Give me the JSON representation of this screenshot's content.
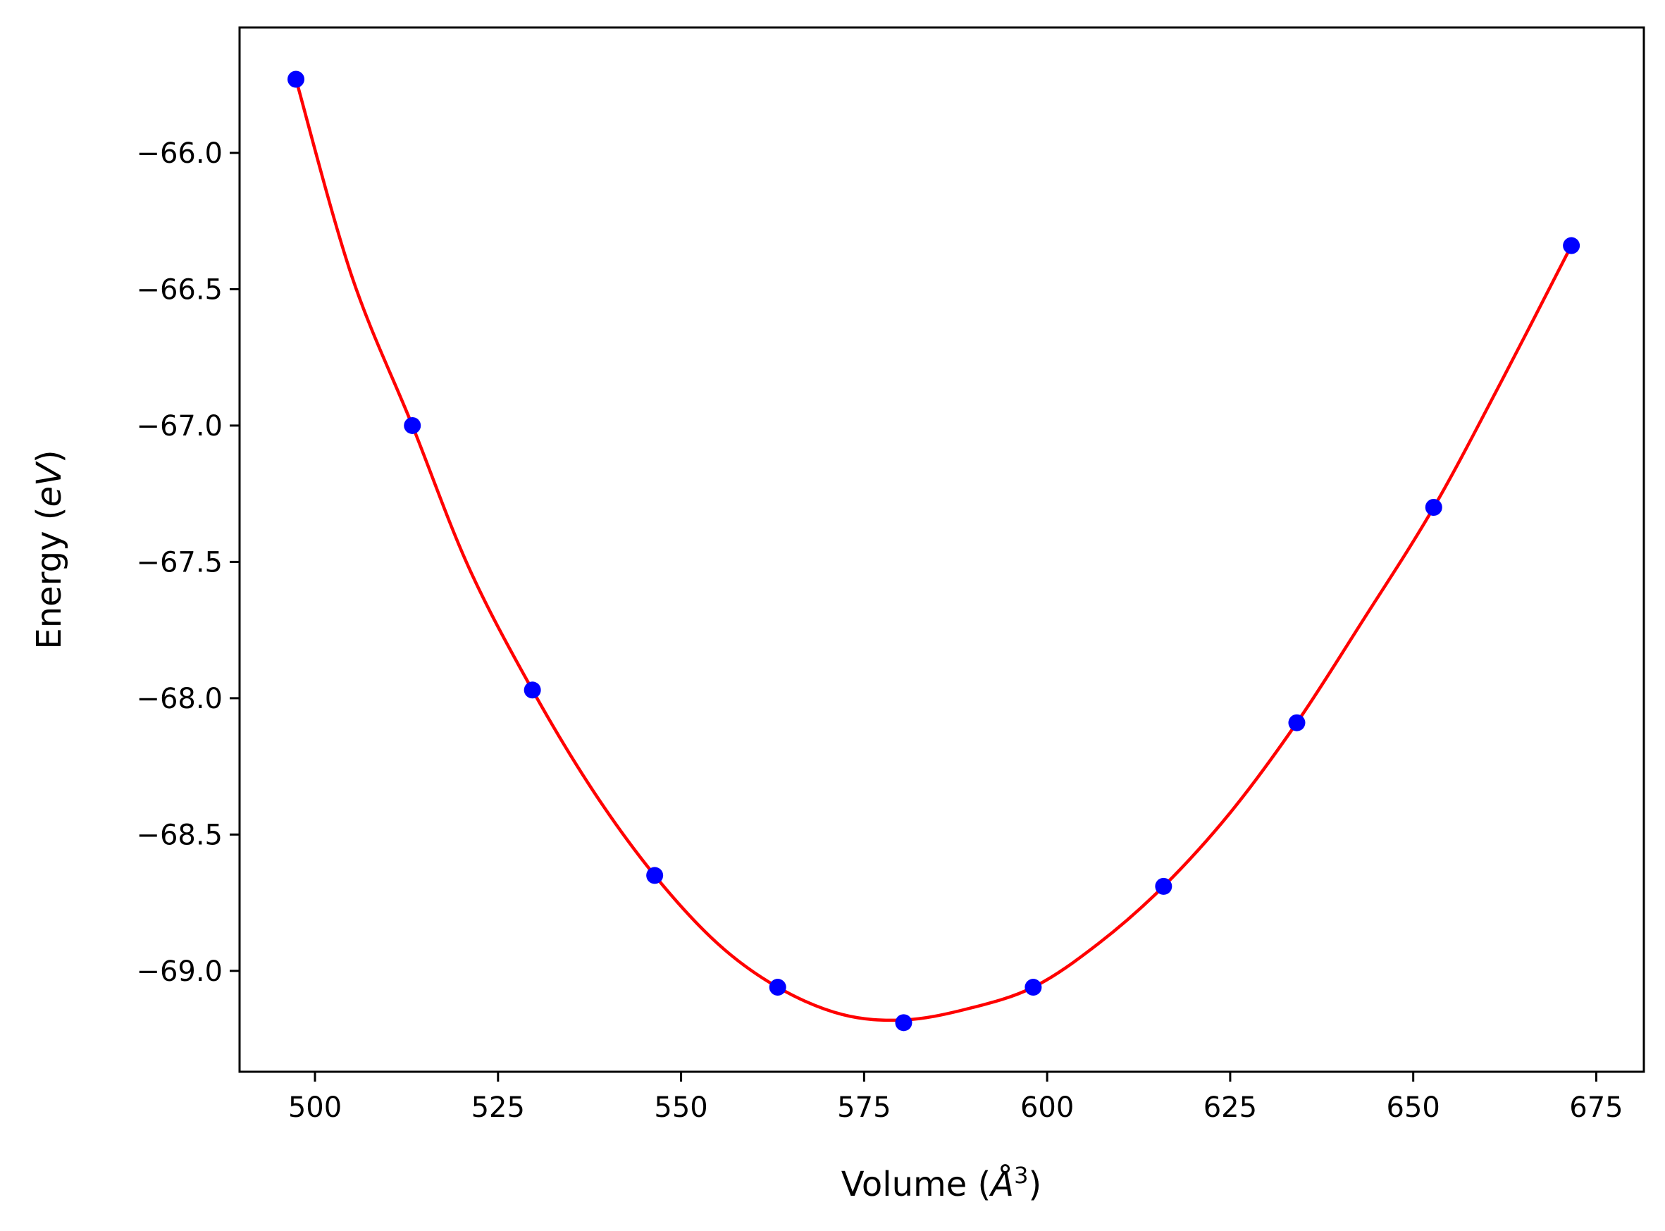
{
  "chart_data": {
    "type": "scatter",
    "xlabel": {
      "prefix": "Volume (",
      "symbol": "Å",
      "sup": "3",
      "suffix": ")"
    },
    "ylabel": {
      "prefix": "Energy (",
      "symbol": "eV",
      "suffix": ")"
    },
    "xlim": [
      489.7,
      681.5
    ],
    "ylim": [
      -69.37,
      -65.54
    ],
    "x_ticks": [
      500,
      525,
      550,
      575,
      600,
      625,
      650,
      675
    ],
    "x_tick_labels": [
      "500",
      "525",
      "550",
      "575",
      "600",
      "625",
      "650",
      "675"
    ],
    "y_ticks": [
      -66.0,
      -66.5,
      -67.0,
      -67.5,
      -68.0,
      -68.5,
      -69.0
    ],
    "y_tick_labels": [
      "−66.0",
      "−66.5",
      "−67.0",
      "−67.5",
      "−68.0",
      "−68.5",
      "−69.0"
    ],
    "grid": false,
    "series": [
      {
        "kind": "points",
        "color": "#0000ff",
        "x": [
          497.4,
          513.3,
          529.7,
          546.4,
          563.2,
          580.4,
          598.1,
          615.9,
          634.1,
          652.8,
          671.6
        ],
        "y": [
          -65.73,
          -67.0,
          -67.97,
          -68.65,
          -69.06,
          -69.19,
          -69.06,
          -68.69,
          -68.09,
          -67.3,
          -66.34
        ]
      },
      {
        "kind": "fit-curve",
        "color": "#ff0000",
        "x": [
          497.4,
          505.0,
          513.3,
          521.0,
          529.7,
          538.0,
          546.4,
          555.0,
          563.2,
          572.0,
          580.4,
          589.0,
          598.1,
          607.0,
          615.9,
          625.0,
          634.1,
          643.0,
          652.8,
          662.0,
          671.6
        ],
        "y": [
          -65.73,
          -66.45,
          -67.0,
          -67.52,
          -67.97,
          -68.34,
          -68.65,
          -68.9,
          -69.06,
          -69.16,
          -69.18,
          -69.14,
          -69.06,
          -68.9,
          -68.69,
          -68.42,
          -68.09,
          -67.72,
          -67.3,
          -66.84,
          -66.34
        ]
      }
    ]
  }
}
